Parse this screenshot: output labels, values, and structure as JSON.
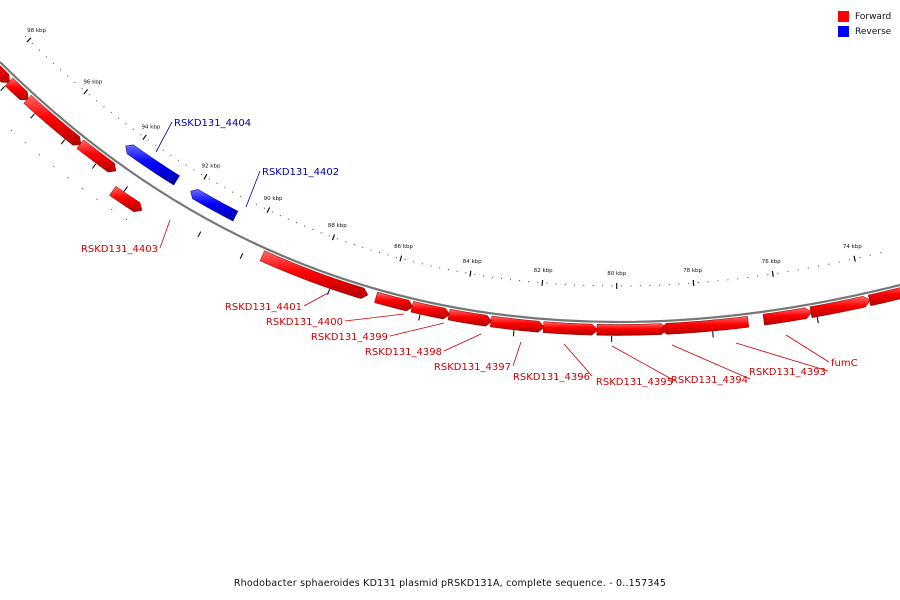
{
  "legend": [
    {
      "label": "Forward",
      "color": "#ff0000"
    },
    {
      "label": "Reverse",
      "color": "#0000ff"
    }
  ],
  "caption": "Rhodobacter sphaeroides KD131 plasmid pRSKD131A, complete sequence. - 0..157345",
  "ticks": [
    "98 kbp",
    "96 kbp",
    "94 kbp",
    "92 kbp",
    "90 kbp",
    "88 kbp",
    "86 kbp",
    "84 kbp",
    "82 kbp",
    "80 kbp",
    "78 kbp",
    "76 kbp",
    "74 kbp"
  ],
  "genes": [
    {
      "label": "RSKD131_4404",
      "strand": "reverse"
    },
    {
      "label": "RSKD131_4402",
      "strand": "reverse"
    },
    {
      "label": "RSKD131_4403",
      "strand": "forward"
    },
    {
      "label": "RSKD131_4401",
      "strand": "forward"
    },
    {
      "label": "RSKD131_4400",
      "strand": "forward"
    },
    {
      "label": "RSKD131_4399",
      "strand": "forward"
    },
    {
      "label": "RSKD131_4398",
      "strand": "forward"
    },
    {
      "label": "RSKD131_4397",
      "strand": "forward"
    },
    {
      "label": "RSKD131_4396",
      "strand": "forward"
    },
    {
      "label": "RSKD131_4395",
      "strand": "forward"
    },
    {
      "label": "RSKD131_4394",
      "strand": "forward"
    },
    {
      "label": "RSKD131_4393",
      "strand": "forward"
    },
    {
      "label": "fumC",
      "strand": "forward"
    }
  ]
}
